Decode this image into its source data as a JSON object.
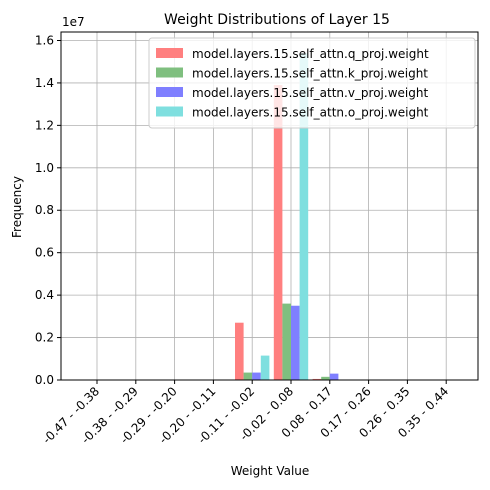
{
  "chart_data": {
    "type": "bar",
    "title": "Weight Distributions of Layer 15",
    "xlabel": "Weight Value",
    "ylabel": "Frequency",
    "y_multiplier_label": "1e7",
    "ylim": [
      0,
      16400000
    ],
    "y_ticks": [
      0,
      2000000,
      4000000,
      6000000,
      8000000,
      10000000,
      12000000,
      14000000,
      16000000
    ],
    "y_tick_labels": [
      "0.0",
      "0.2",
      "0.4",
      "0.6",
      "0.8",
      "1.0",
      "1.2",
      "1.4",
      "1.6"
    ],
    "grid": true,
    "legend_position": "top-right",
    "categories": [
      "-0.47 - -0.38",
      "-0.38 - -0.29",
      "-0.29 - -0.20",
      "-0.20 - -0.11",
      "-0.11 - -0.02",
      "-0.02 - 0.08",
      "0.08 - 0.17",
      "0.17 - 0.26",
      "0.26 - 0.35",
      "0.35 - 0.44"
    ],
    "series": [
      {
        "name": "model.layers.15.self_attn.q_proj.weight",
        "color": "#ff7f7f",
        "values": [
          0,
          0,
          0,
          0,
          2700000,
          13900000,
          50000,
          0,
          0,
          0
        ]
      },
      {
        "name": "model.layers.15.self_attn.k_proj.weight",
        "color": "#7fbf7f",
        "values": [
          0,
          0,
          0,
          0,
          350000,
          3600000,
          150000,
          0,
          0,
          0
        ]
      },
      {
        "name": "model.layers.15.self_attn.v_proj.weight",
        "color": "#7f7fff",
        "values": [
          0,
          0,
          0,
          0,
          350000,
          3500000,
          300000,
          0,
          0,
          0
        ]
      },
      {
        "name": "model.layers.15.self_attn.o_proj.weight",
        "color": "#7fdfdf",
        "values": [
          0,
          0,
          0,
          0,
          1150000,
          15400000,
          20000,
          0,
          0,
          0
        ]
      }
    ]
  }
}
